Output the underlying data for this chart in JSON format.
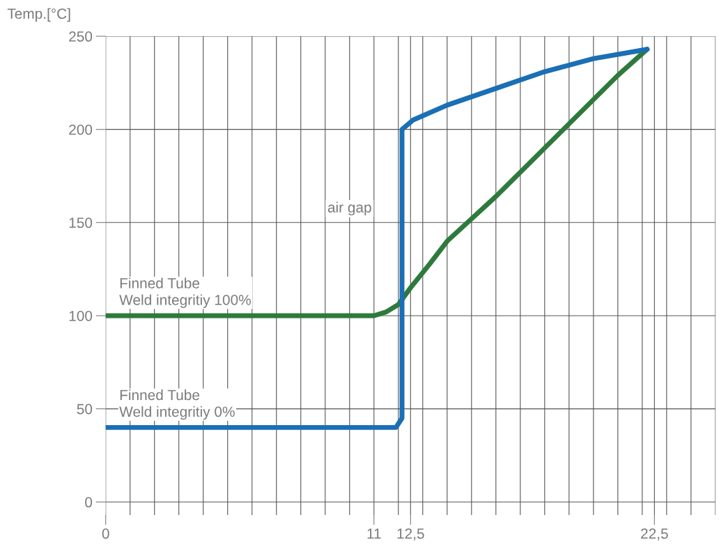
{
  "chart_data": {
    "type": "line",
    "ylabel": "Temp.[°C]",
    "xlim": [
      0,
      25
    ],
    "ylim": [
      -7,
      250
    ],
    "xticks": [
      0,
      {
        "value": 1,
        "label": null
      },
      {
        "value": 2,
        "label": null
      },
      {
        "value": 3,
        "label": null
      },
      {
        "value": 4,
        "label": null
      },
      {
        "value": 5,
        "label": null
      },
      {
        "value": 6,
        "label": null
      },
      {
        "value": 7,
        "label": null
      },
      {
        "value": 8,
        "label": null
      },
      {
        "value": 9,
        "label": null
      },
      {
        "value": 10,
        "label": null
      },
      11,
      {
        "value": 12,
        "label": null
      },
      {
        "value": 12.5,
        "label": "12,5"
      },
      {
        "value": 13,
        "label": null
      },
      {
        "value": 14,
        "label": null
      },
      {
        "value": 15,
        "label": null
      },
      {
        "value": 16,
        "label": null
      },
      {
        "value": 17,
        "label": null
      },
      {
        "value": 18,
        "label": null
      },
      {
        "value": 19,
        "label": null
      },
      {
        "value": 20,
        "label": null
      },
      {
        "value": 21,
        "label": null
      },
      {
        "value": 22,
        "label": null
      },
      {
        "value": 22.5,
        "label": "22,5"
      },
      {
        "value": 23,
        "label": null
      },
      {
        "value": 24,
        "label": null
      },
      {
        "value": 25,
        "label": null
      }
    ],
    "yticks": [
      0,
      50,
      100,
      150,
      200,
      250
    ],
    "grid": true,
    "series": [
      {
        "name": "Finned Tube\nWeld integritiy 100%",
        "color": "#2e7a3c",
        "x": [
          0,
          11,
          11.5,
          12,
          12.5,
          13.3,
          14,
          15,
          16,
          17,
          18,
          19,
          20,
          21,
          21.6,
          22.2
        ],
        "values": [
          100,
          100,
          102,
          106,
          115,
          128,
          140,
          152,
          164,
          177,
          190,
          203,
          216,
          229,
          236,
          243
        ]
      },
      {
        "name": "Finned Tube\nWeld integritiy 0%",
        "color": "#1a6fb5",
        "x": [
          0,
          11.9,
          12.15,
          12.15,
          12.6,
          14,
          16,
          18,
          20,
          22.2
        ],
        "values": [
          40,
          40,
          45,
          200,
          205,
          213,
          222,
          231,
          238,
          243
        ]
      }
    ],
    "annotations": [
      "air gap"
    ]
  }
}
